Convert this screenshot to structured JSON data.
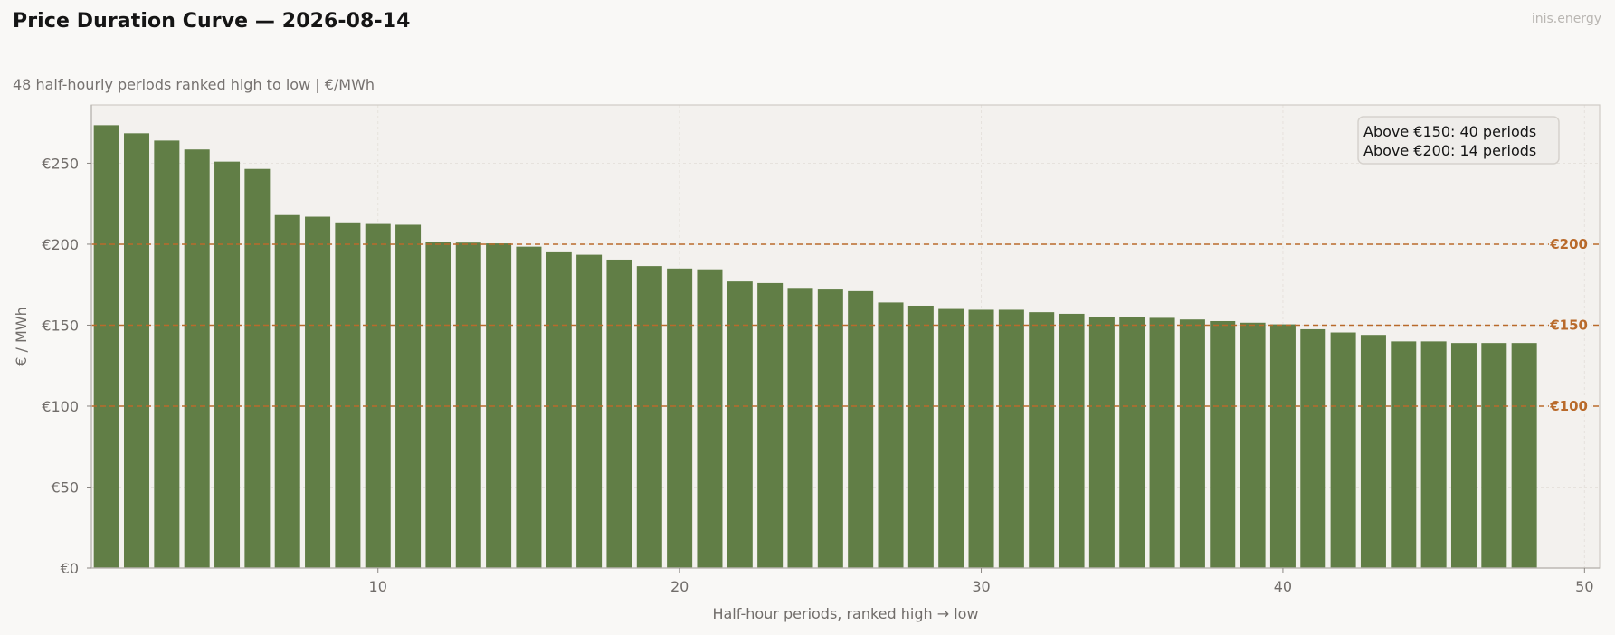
{
  "header": {
    "title": "Price Duration Curve — 2026-08-14",
    "subtitle": "48 half-hourly periods ranked high to low  |  €/MWh",
    "watermark": "inis.energy"
  },
  "colors": {
    "bar": "#617e46",
    "reference_line": "#b96a2b",
    "plot_background": "#f3f1ee",
    "page_background": "#f9f8f6"
  },
  "chart_data": {
    "type": "bar",
    "title": "Price Duration Curve — 2026-08-14",
    "subtitle": "48 half-hourly periods ranked high to low  |  €/MWh",
    "xlabel": "Half-hour periods, ranked high → low",
    "ylabel": "€ / MWh",
    "xlim": [
      0.5,
      50.5
    ],
    "ylim": [
      0,
      286
    ],
    "x_ticks": [
      10,
      20,
      30,
      40,
      50
    ],
    "x_tick_labels": [
      "10",
      "20",
      "30",
      "40",
      "50"
    ],
    "y_ticks": [
      0,
      50,
      100,
      150,
      200,
      250
    ],
    "y_tick_labels": [
      "€0",
      "€50",
      "€100",
      "€150",
      "€200",
      "€250"
    ],
    "grid": true,
    "x": [
      1,
      2,
      3,
      4,
      5,
      6,
      7,
      8,
      9,
      10,
      11,
      12,
      13,
      14,
      15,
      16,
      17,
      18,
      19,
      20,
      21,
      22,
      23,
      24,
      25,
      26,
      27,
      28,
      29,
      30,
      31,
      32,
      33,
      34,
      35,
      36,
      37,
      38,
      39,
      40,
      41,
      42,
      43,
      44,
      45,
      46,
      47,
      48
    ],
    "values": [
      273.5,
      268.5,
      264,
      258.5,
      251,
      246.5,
      218,
      217,
      213.5,
      212.5,
      212,
      201.5,
      201,
      200.5,
      198.5,
      195,
      193.5,
      190.5,
      186.5,
      185,
      184.5,
      177,
      176,
      173,
      172,
      171,
      164,
      162,
      160,
      159.5,
      159.5,
      158,
      157,
      155,
      155,
      154.5,
      153.5,
      152.5,
      151.5,
      150.5,
      147.5,
      145.5,
      144,
      140,
      140,
      139,
      139,
      139
    ],
    "reference_lines": [
      {
        "value": 200,
        "label": "€200"
      },
      {
        "value": 150,
        "label": "€150"
      },
      {
        "value": 100,
        "label": "€100"
      }
    ],
    "annotation": {
      "position": "top-right",
      "lines": [
        "Above €150: 40 periods",
        "Above €200: 14 periods"
      ]
    }
  }
}
